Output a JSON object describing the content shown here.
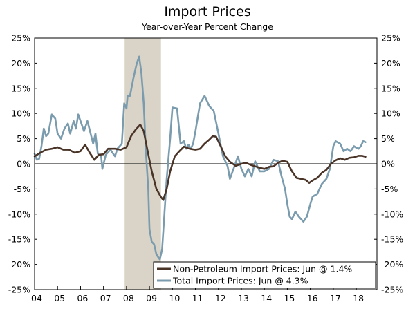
{
  "chart_data": {
    "type": "line",
    "title": "Import Prices",
    "subtitle": "Year-over-Year Percent Change",
    "xlabel": "",
    "ylabel": "",
    "ylim": [
      -25,
      25
    ],
    "xlim": [
      2004.0,
      2018.9
    ],
    "y_ticks": [
      "25%",
      "20%",
      "15%",
      "10%",
      "5%",
      "0%",
      "-5%",
      "-10%",
      "-15%",
      "-20%",
      "-25%"
    ],
    "y_tick_values": [
      25,
      20,
      15,
      10,
      5,
      0,
      -5,
      -10,
      -15,
      -20,
      -25
    ],
    "x_ticks": [
      "04",
      "05",
      "06",
      "07",
      "08",
      "09",
      "10",
      "11",
      "12",
      "13",
      "14",
      "15",
      "16",
      "17",
      "18"
    ],
    "x_tick_values": [
      2004,
      2005,
      2006,
      2007,
      2008,
      2009,
      2010,
      2011,
      2012,
      2013,
      2014,
      2015,
      2016,
      2017,
      2018
    ],
    "shaded_regions": [
      {
        "start": 2007.92,
        "end": 2009.5,
        "color": "#d9d4c7"
      }
    ],
    "zero_line": true,
    "legend_placement": "bottom-right",
    "series": [
      {
        "name": "Non-Petroleum Import Prices: Jun @ 1.4%",
        "color": "#4a3428",
        "points": [
          [
            2004.0,
            1.5
          ],
          [
            2004.25,
            2.2
          ],
          [
            2004.5,
            2.8
          ],
          [
            2004.75,
            3.0
          ],
          [
            2005.0,
            3.3
          ],
          [
            2005.25,
            2.8
          ],
          [
            2005.5,
            2.8
          ],
          [
            2005.75,
            2.2
          ],
          [
            2006.0,
            2.5
          ],
          [
            2006.2,
            3.8
          ],
          [
            2006.4,
            2.2
          ],
          [
            2006.6,
            0.8
          ],
          [
            2006.8,
            1.8
          ],
          [
            2007.0,
            1.9
          ],
          [
            2007.2,
            3.0
          ],
          [
            2007.5,
            3.0
          ],
          [
            2007.75,
            2.8
          ],
          [
            2008.0,
            3.3
          ],
          [
            2008.2,
            5.5
          ],
          [
            2008.4,
            6.8
          ],
          [
            2008.6,
            7.8
          ],
          [
            2008.75,
            6.5
          ],
          [
            2008.9,
            3.0
          ],
          [
            2009.1,
            -1.5
          ],
          [
            2009.3,
            -5.0
          ],
          [
            2009.5,
            -6.6
          ],
          [
            2009.6,
            -7.2
          ],
          [
            2009.75,
            -5.0
          ],
          [
            2009.9,
            -1.5
          ],
          [
            2010.1,
            1.5
          ],
          [
            2010.3,
            2.5
          ],
          [
            2010.5,
            3.4
          ],
          [
            2010.75,
            3.0
          ],
          [
            2011.0,
            2.8
          ],
          [
            2011.2,
            3.0
          ],
          [
            2011.4,
            4.0
          ],
          [
            2011.6,
            4.8
          ],
          [
            2011.75,
            5.5
          ],
          [
            2011.9,
            5.4
          ],
          [
            2012.1,
            3.5
          ],
          [
            2012.3,
            1.5
          ],
          [
            2012.5,
            0.4
          ],
          [
            2012.75,
            -0.4
          ],
          [
            2013.0,
            0.0
          ],
          [
            2013.2,
            0.2
          ],
          [
            2013.4,
            -0.2
          ],
          [
            2013.6,
            -0.5
          ],
          [
            2013.8,
            -0.8
          ],
          [
            2014.0,
            -1.0
          ],
          [
            2014.2,
            -0.6
          ],
          [
            2014.4,
            -0.5
          ],
          [
            2014.6,
            0.2
          ],
          [
            2014.8,
            0.6
          ],
          [
            2015.0,
            0.4
          ],
          [
            2015.2,
            -1.5
          ],
          [
            2015.4,
            -2.8
          ],
          [
            2015.6,
            -3.0
          ],
          [
            2015.8,
            -3.2
          ],
          [
            2015.95,
            -3.8
          ],
          [
            2016.1,
            -3.3
          ],
          [
            2016.3,
            -2.8
          ],
          [
            2016.5,
            -1.8
          ],
          [
            2016.7,
            -1.2
          ],
          [
            2016.9,
            0.0
          ],
          [
            2017.1,
            0.7
          ],
          [
            2017.3,
            1.1
          ],
          [
            2017.5,
            0.8
          ],
          [
            2017.7,
            1.2
          ],
          [
            2017.9,
            1.3
          ],
          [
            2018.1,
            1.6
          ],
          [
            2018.25,
            1.6
          ],
          [
            2018.4,
            1.4
          ]
        ]
      },
      {
        "name": "Total Import Prices: Jun @ 4.3%",
        "color": "#7b9cae",
        "points": [
          [
            2004.0,
            2.0
          ],
          [
            2004.1,
            0.8
          ],
          [
            2004.2,
            1.0
          ],
          [
            2004.3,
            3.5
          ],
          [
            2004.4,
            7.0
          ],
          [
            2004.5,
            5.5
          ],
          [
            2004.6,
            6.0
          ],
          [
            2004.75,
            9.8
          ],
          [
            2004.9,
            9.0
          ],
          [
            2005.0,
            6.0
          ],
          [
            2005.15,
            5.0
          ],
          [
            2005.3,
            7.0
          ],
          [
            2005.45,
            8.0
          ],
          [
            2005.55,
            6.0
          ],
          [
            2005.7,
            8.5
          ],
          [
            2005.8,
            7.0
          ],
          [
            2005.9,
            9.8
          ],
          [
            2006.0,
            8.5
          ],
          [
            2006.15,
            6.5
          ],
          [
            2006.3,
            8.5
          ],
          [
            2006.45,
            5.8
          ],
          [
            2006.55,
            4.0
          ],
          [
            2006.65,
            6.0
          ],
          [
            2006.75,
            2.0
          ],
          [
            2006.9,
            1.5
          ],
          [
            2006.95,
            -1.0
          ],
          [
            2007.1,
            1.8
          ],
          [
            2007.3,
            2.8
          ],
          [
            2007.5,
            1.5
          ],
          [
            2007.6,
            3.0
          ],
          [
            2007.8,
            4.0
          ],
          [
            2007.9,
            12.0
          ],
          [
            2008.0,
            11.0
          ],
          [
            2008.05,
            13.5
          ],
          [
            2008.15,
            13.5
          ],
          [
            2008.3,
            17.0
          ],
          [
            2008.45,
            20.0
          ],
          [
            2008.55,
            21.3
          ],
          [
            2008.65,
            18.0
          ],
          [
            2008.75,
            12.0
          ],
          [
            2008.85,
            2.0
          ],
          [
            2008.95,
            -5.0
          ],
          [
            2009.0,
            -13.0
          ],
          [
            2009.1,
            -15.5
          ],
          [
            2009.2,
            -16.0
          ],
          [
            2009.3,
            -18.0
          ],
          [
            2009.4,
            -18.7
          ],
          [
            2009.45,
            -19.0
          ],
          [
            2009.55,
            -17.0
          ],
          [
            2009.65,
            -10.0
          ],
          [
            2009.75,
            -3.0
          ],
          [
            2009.9,
            5.0
          ],
          [
            2010.0,
            11.2
          ],
          [
            2010.2,
            11.0
          ],
          [
            2010.35,
            4.0
          ],
          [
            2010.5,
            4.5
          ],
          [
            2010.6,
            3.0
          ],
          [
            2010.7,
            3.8
          ],
          [
            2010.8,
            3.0
          ],
          [
            2010.9,
            4.0
          ],
          [
            2011.0,
            6.5
          ],
          [
            2011.2,
            12.0
          ],
          [
            2011.4,
            13.5
          ],
          [
            2011.6,
            11.5
          ],
          [
            2011.8,
            10.5
          ],
          [
            2012.0,
            6.0
          ],
          [
            2012.2,
            1.5
          ],
          [
            2012.4,
            -0.5
          ],
          [
            2012.5,
            -3.0
          ],
          [
            2012.7,
            -0.5
          ],
          [
            2012.85,
            1.5
          ],
          [
            2013.0,
            -1.0
          ],
          [
            2013.15,
            -2.5
          ],
          [
            2013.3,
            -1.0
          ],
          [
            2013.45,
            -2.5
          ],
          [
            2013.6,
            0.5
          ],
          [
            2013.8,
            -1.5
          ],
          [
            2014.0,
            -1.5
          ],
          [
            2014.2,
            -1.0
          ],
          [
            2014.4,
            0.8
          ],
          [
            2014.6,
            0.5
          ],
          [
            2014.75,
            -2.5
          ],
          [
            2014.9,
            -5.0
          ],
          [
            2015.0,
            -8.0
          ],
          [
            2015.1,
            -10.5
          ],
          [
            2015.2,
            -11.0
          ],
          [
            2015.35,
            -9.5
          ],
          [
            2015.5,
            -10.5
          ],
          [
            2015.6,
            -11.0
          ],
          [
            2015.7,
            -11.5
          ],
          [
            2015.85,
            -10.5
          ],
          [
            2016.0,
            -8.0
          ],
          [
            2016.1,
            -6.5
          ],
          [
            2016.3,
            -6.0
          ],
          [
            2016.5,
            -4.0
          ],
          [
            2016.7,
            -3.0
          ],
          [
            2016.85,
            -1.0
          ],
          [
            2017.0,
            3.5
          ],
          [
            2017.1,
            4.5
          ],
          [
            2017.3,
            4.0
          ],
          [
            2017.45,
            2.5
          ],
          [
            2017.6,
            3.0
          ],
          [
            2017.75,
            2.5
          ],
          [
            2017.9,
            3.5
          ],
          [
            2018.0,
            3.2
          ],
          [
            2018.1,
            3.0
          ],
          [
            2018.2,
            3.5
          ],
          [
            2018.3,
            4.5
          ],
          [
            2018.4,
            4.3
          ]
        ]
      }
    ]
  }
}
